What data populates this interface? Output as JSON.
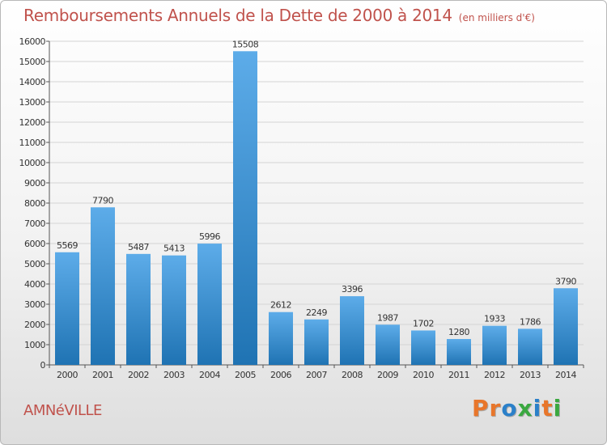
{
  "colors": {
    "accent": "#c0524c",
    "bar_light": "#5dace9",
    "bar_dark": "#1f73b3",
    "logo": [
      "#e8762b",
      "#e8762b",
      "#2b80c9",
      "#3aa840",
      "#2b80c9",
      "#e8762b",
      "#3aa840"
    ]
  },
  "header": {
    "title": "Remboursements Annuels de la Dette de 2000 à 2014",
    "unit": "(en milliers d'€)"
  },
  "footer": {
    "city": "AMNéVILLE",
    "logo_letters": [
      "P",
      "r",
      "o",
      "x",
      "i",
      "t",
      "i"
    ]
  },
  "chart_data": {
    "type": "bar",
    "title": "Remboursements Annuels de la Dette de 2000 à 2014",
    "subtitle": "(en milliers d'€)",
    "xlabel": "",
    "ylabel": "",
    "categories": [
      "2000",
      "2001",
      "2002",
      "2003",
      "2004",
      "2005",
      "2006",
      "2007",
      "2008",
      "2009",
      "2010",
      "2011",
      "2012",
      "2013",
      "2014"
    ],
    "values": [
      5569,
      7790,
      5487,
      5413,
      5996,
      15508,
      2612,
      2249,
      3396,
      1987,
      1702,
      1280,
      1933,
      1786,
      3790
    ],
    "ylim": [
      0,
      16000
    ],
    "yticks": [
      0,
      1000,
      2000,
      3000,
      4000,
      5000,
      6000,
      7000,
      8000,
      9000,
      10000,
      11000,
      12000,
      13000,
      14000,
      15000,
      16000
    ],
    "grid": true,
    "legend": "none"
  }
}
